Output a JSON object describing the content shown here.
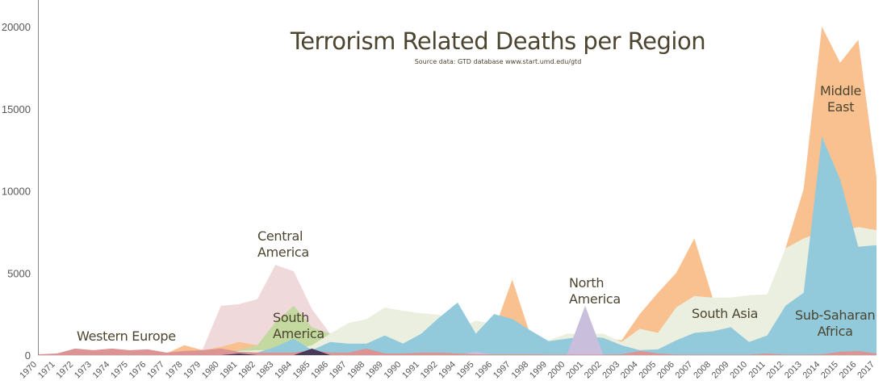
{
  "chart_data": {
    "type": "area",
    "title": "Terrorism Related Deaths per Region",
    "subtitle": "Source data: GTD database www.start.umd.edu/gtd",
    "xlabel": "",
    "ylabel": "",
    "ylim": [
      0,
      20000
    ],
    "yticks": [
      "0",
      "5000",
      "10000",
      "15000",
      "20000"
    ],
    "grid": false,
    "stacked": false,
    "x": [
      1970,
      1971,
      1972,
      1973,
      1974,
      1975,
      1976,
      1977,
      1978,
      1979,
      1980,
      1981,
      1982,
      1983,
      1984,
      1985,
      1986,
      1987,
      1988,
      1989,
      1990,
      1991,
      1992,
      1994,
      1995,
      1996,
      1997,
      1998,
      1999,
      2000,
      2001,
      2002,
      2003,
      2004,
      2005,
      2006,
      2007,
      2008,
      2009,
      2010,
      2011,
      2012,
      2013,
      2014,
      2015,
      2016,
      2017
    ],
    "series": [
      {
        "name": "Central America",
        "label": "Central\nAmerica",
        "color": "#f0d9da",
        "values": [
          20,
          30,
          30,
          30,
          40,
          50,
          50,
          80,
          200,
          350,
          3000,
          3100,
          3400,
          5500,
          5100,
          2800,
          1300,
          800,
          500,
          400,
          300,
          200,
          200,
          50,
          50,
          40,
          30,
          30,
          30,
          30,
          30,
          30,
          30,
          30,
          30,
          30,
          30,
          30,
          30,
          30,
          30,
          30,
          30,
          30,
          30,
          30,
          30
        ]
      },
      {
        "name": "Middle East",
        "label": "Middle\nEast",
        "color": "#f9c190",
        "values": [
          10,
          20,
          100,
          50,
          80,
          100,
          100,
          100,
          600,
          300,
          500,
          800,
          600,
          500,
          500,
          500,
          400,
          500,
          500,
          500,
          500,
          600,
          700,
          800,
          1000,
          1500,
          4600,
          1200,
          700,
          800,
          900,
          1080,
          900,
          2500,
          3800,
          5000,
          7100,
          3500,
          3000,
          3000,
          3000,
          6500,
          10100,
          20000,
          17800,
          19200,
          10800
        ]
      },
      {
        "name": "South America",
        "label": "South\nAmerica",
        "color": "#c3d99f",
        "values": [
          0,
          0,
          0,
          0,
          0,
          0,
          0,
          0,
          50,
          100,
          200,
          300,
          600,
          2000,
          3000,
          1700,
          1300,
          1300,
          1500,
          1800,
          1700,
          1500,
          1600,
          600,
          300,
          300,
          300,
          300,
          300,
          300,
          200,
          200,
          100,
          100,
          50,
          50,
          50,
          50,
          50,
          50,
          50,
          50,
          50,
          50,
          50,
          50,
          50
        ]
      },
      {
        "name": "South Asia",
        "label": "South Asia",
        "color": "#ebefdf",
        "values": [
          0,
          0,
          0,
          0,
          0,
          0,
          10,
          30,
          100,
          150,
          200,
          250,
          300,
          300,
          300,
          600,
          1300,
          1950,
          2200,
          2900,
          2700,
          2550,
          2450,
          1600,
          2100,
          1900,
          1800,
          1300,
          900,
          1300,
          1300,
          1300,
          800,
          1600,
          1350,
          2900,
          3600,
          3500,
          3500,
          3650,
          3700,
          6500,
          7100,
          7500,
          7500,
          7800,
          7600
        ]
      },
      {
        "name": "Sub-Saharan Africa",
        "label": "Sub-Saharan\nAfrica",
        "color": "#92cadb",
        "values": [
          0,
          0,
          0,
          0,
          10,
          20,
          30,
          30,
          50,
          50,
          80,
          100,
          150,
          500,
          1000,
          300,
          800,
          700,
          700,
          1200,
          700,
          1300,
          2300,
          3200,
          1300,
          2500,
          2200,
          1500,
          850,
          1000,
          1150,
          1050,
          600,
          300,
          350,
          900,
          1350,
          1450,
          1700,
          800,
          1200,
          3000,
          3800,
          13300,
          10700,
          6600,
          6700
        ]
      },
      {
        "name": "North America",
        "label": "North\nAmerica",
        "color": "#c9bedb",
        "values": [
          10,
          20,
          20,
          20,
          20,
          20,
          20,
          20,
          20,
          20,
          20,
          20,
          20,
          20,
          20,
          20,
          20,
          20,
          20,
          20,
          20,
          20,
          20,
          20,
          200,
          20,
          20,
          20,
          20,
          20,
          3000,
          20,
          20,
          20,
          20,
          20,
          20,
          20,
          20,
          20,
          20,
          20,
          20,
          20,
          20,
          20,
          20
        ]
      },
      {
        "name": "Western Europe",
        "label": "Western Europe",
        "color": "#dc9393",
        "values": [
          50,
          100,
          400,
          300,
          400,
          300,
          350,
          150,
          250,
          300,
          400,
          200,
          150,
          150,
          150,
          300,
          150,
          150,
          400,
          100,
          100,
          150,
          150,
          100,
          50,
          50,
          50,
          50,
          30,
          30,
          30,
          30,
          50,
          250,
          100,
          30,
          30,
          30,
          30,
          30,
          100,
          30,
          30,
          50,
          200,
          250,
          100
        ]
      },
      {
        "color": "#4a3a5a",
        "values": [
          0,
          0,
          0,
          0,
          0,
          0,
          0,
          0,
          0,
          0,
          0,
          100,
          0,
          0,
          0,
          400,
          0,
          0,
          0,
          0,
          0,
          0,
          0,
          0,
          0,
          0,
          0,
          0,
          0,
          0,
          0,
          0,
          0,
          0,
          0,
          0,
          0,
          0,
          0,
          0,
          0,
          0,
          0,
          0,
          0,
          0,
          0
        ]
      }
    ]
  }
}
